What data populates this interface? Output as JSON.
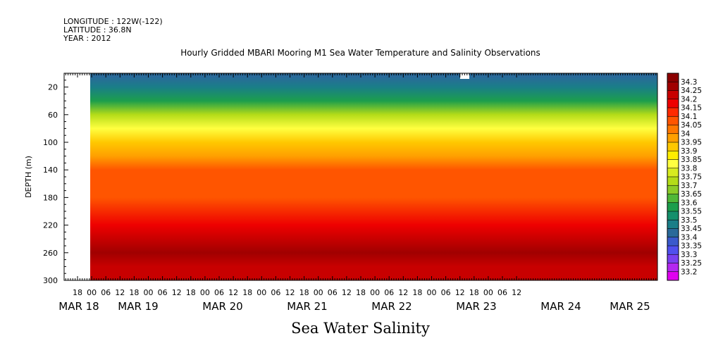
{
  "header": {
    "line1": "LONGITUDE : 122W(-122)",
    "line2": "LATITUDE : 36.8N",
    "line3": "YEAR : 2012"
  },
  "chart_data": {
    "type": "heatmap",
    "title": "Hourly Gridded MBARI Mooring M1 Sea Water Temperature and Salinity Observations",
    "xlabel": "Sea Water Salinity",
    "ylabel": "DEPTH (m)",
    "ylim": [
      0,
      300
    ],
    "y_ticks": [
      20,
      60,
      100,
      140,
      180,
      220,
      260,
      300
    ],
    "x_hour_ticks": [
      "18",
      "00",
      "06",
      "12",
      "18",
      "00",
      "06",
      "12",
      "18",
      "00",
      "06",
      "12",
      "18",
      "00",
      "06",
      "12",
      "18",
      "00",
      "06",
      "12",
      "18",
      "00",
      "06",
      "12",
      "18",
      "00",
      "06",
      "12",
      "18",
      "00",
      "06",
      "12"
    ],
    "x_date_labels": [
      "MAR 18",
      "MAR 19",
      "MAR 20",
      "MAR 21",
      "MAR 22",
      "MAR 23",
      "MAR 24",
      "MAR 25"
    ],
    "colorbar_levels": [
      "34.3",
      "34.25",
      "34.2",
      "34.15",
      "34.1",
      "34.05",
      "34",
      "33.95",
      "33.9",
      "33.85",
      "33.8",
      "33.75",
      "33.7",
      "33.65",
      "33.6",
      "33.55",
      "33.5",
      "33.45",
      "33.4",
      "33.35",
      "33.3",
      "33.25",
      "33.2"
    ],
    "colorbar_colors": [
      "#8b0000",
      "#a00000",
      "#c80000",
      "#ee0000",
      "#ff2a00",
      "#ff5500",
      "#ff7800",
      "#ffa000",
      "#ffc800",
      "#ffee00",
      "#ffff40",
      "#d8ec20",
      "#b4dc18",
      "#8ccc28",
      "#50b838",
      "#1c9e4c",
      "#14906c",
      "#1a7e88",
      "#2a6a9a",
      "#3a5acc",
      "#5050ee",
      "#7a40f0",
      "#b428f0",
      "#e000f0"
    ],
    "profile": [
      {
        "depth": 5,
        "value": 33.4
      },
      {
        "depth": 20,
        "value": 33.48
      },
      {
        "depth": 40,
        "value": 33.58
      },
      {
        "depth": 60,
        "value": 33.7
      },
      {
        "depth": 80,
        "value": 33.8
      },
      {
        "depth": 100,
        "value": 33.9
      },
      {
        "depth": 120,
        "value": 33.98
      },
      {
        "depth": 140,
        "value": 34.05
      },
      {
        "depth": 180,
        "value": 34.08
      },
      {
        "depth": 220,
        "value": 34.15
      },
      {
        "depth": 240,
        "value": 34.22
      },
      {
        "depth": 260,
        "value": 34.27
      },
      {
        "depth": 280,
        "value": 34.22
      },
      {
        "depth": 300,
        "value": 34.2
      }
    ]
  }
}
